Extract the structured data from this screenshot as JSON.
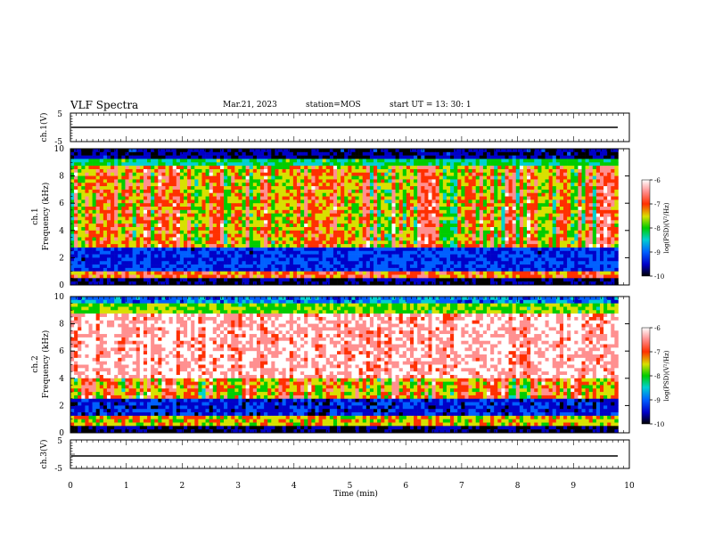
{
  "header": {
    "title": "VLF Spectra",
    "date": "Mar.21, 2023",
    "station": "station=MOS",
    "start_time": "start  UT =   13: 30: 1"
  },
  "colors": {
    "scale": [
      "#000000",
      "#0000c8",
      "#0060ff",
      "#00d0d0",
      "#00cc00",
      "#d8e000",
      "#ff3000",
      "#ff9090",
      "#ffffff"
    ]
  },
  "chart_data": [
    {
      "type": "line",
      "panel": "ch1-waveform",
      "ylabel": "ch.1(V)",
      "ylim": [
        -5,
        5
      ],
      "y_ticks": [
        "5",
        "-5"
      ],
      "series": [
        {
          "x": [
            0,
            9.8
          ],
          "y": [
            0,
            0
          ]
        }
      ]
    },
    {
      "type": "heatmap",
      "panel": "ch1-spectrogram",
      "ylabel": "ch.1\nFrequency (kHz)",
      "ylim": [
        0,
        10
      ],
      "y_ticks": [
        "0",
        "2",
        "4",
        "6",
        "8",
        "10"
      ],
      "x_range": [
        0,
        9.8
      ],
      "colorbar": {
        "label": "log(PSD)(V²/Hz)",
        "range": [
          -10,
          -6
        ],
        "ticks": [
          "-6",
          "-7",
          "-8",
          "-9",
          "-10"
        ]
      }
    },
    {
      "type": "heatmap",
      "panel": "ch2-spectrogram",
      "ylabel": "ch.2\nFrequency (kHz)",
      "ylim": [
        0,
        10
      ],
      "y_ticks": [
        "0",
        "2",
        "4",
        "6",
        "8",
        "10"
      ],
      "x_range": [
        0,
        9.8
      ],
      "colorbar": {
        "label": "log(PSD)(V²/Hz)",
        "range": [
          -10,
          -6
        ],
        "ticks": [
          "-6",
          "-7",
          "-8",
          "-9",
          "-10"
        ]
      }
    },
    {
      "type": "line",
      "panel": "ch3-waveform",
      "ylabel": "ch.3(V)",
      "ylim": [
        -5,
        5
      ],
      "y_ticks": [
        "5",
        "-5"
      ],
      "series": [
        {
          "x": [
            0,
            9.8
          ],
          "y": [
            0,
            0
          ]
        }
      ]
    }
  ],
  "xaxis": {
    "label": "Time (min)",
    "range": [
      0,
      10
    ],
    "ticks": [
      "0",
      "1",
      "2",
      "3",
      "4",
      "5",
      "6",
      "7",
      "8",
      "9",
      "10"
    ]
  }
}
